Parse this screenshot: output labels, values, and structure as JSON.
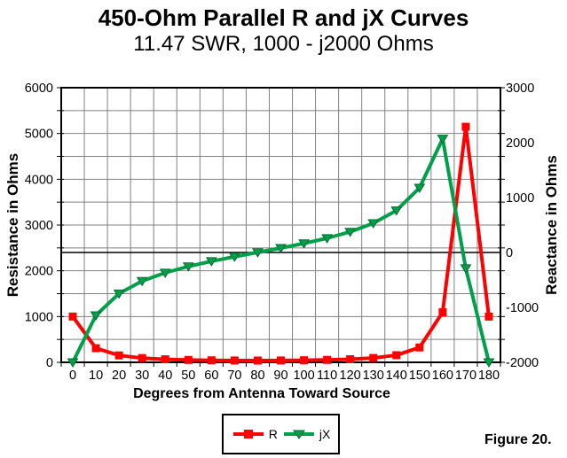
{
  "header": {
    "title": "450-Ohm Parallel R and jX Curves",
    "subtitle": "11.47 SWR, 1000 - j2000 Ohms"
  },
  "axes": {
    "left_title": "Resistance in Ohms",
    "right_title": "Reactance in Ohms",
    "x_title": "Degrees from Antenna Toward Source"
  },
  "legend": {
    "items": [
      {
        "label": "R",
        "color": "#ff0000",
        "marker": "square"
      },
      {
        "label": "jX",
        "color": "#00a04a",
        "marker": "triangle-down"
      }
    ]
  },
  "caption": "Figure 20.",
  "colors": {
    "r_series": "#ff0000",
    "jx_series": "#00a04a",
    "jx_marker_edge": "#006b31",
    "grid": "#808080",
    "axis": "#000000",
    "background": "#ffffff"
  },
  "chart_data": {
    "type": "line",
    "title": "450-Ohm Parallel R and jX Curves",
    "subtitle": "11.47 SWR, 1000 - j2000 Ohms",
    "xlabel": "Degrees from Antenna Toward Source",
    "x": [
      0,
      10,
      20,
      30,
      40,
      50,
      60,
      70,
      80,
      90,
      100,
      110,
      120,
      130,
      140,
      150,
      160,
      170,
      180
    ],
    "series": [
      {
        "name": "R",
        "axis": "left",
        "color": "#ff0000",
        "marker": "square",
        "values": [
          1000,
          309,
          151,
          93,
          66,
          52,
          44,
          40,
          39,
          41,
          45,
          53,
          67,
          95,
          156,
          325,
          1094,
          5147,
          1000
        ]
      },
      {
        "name": "jX",
        "axis": "right",
        "color": "#00a04a",
        "marker": "triangle-down",
        "values": [
          -2000,
          -1145,
          -748,
          -521,
          -369,
          -254,
          -160,
          -77,
          2,
          81,
          165,
          260,
          376,
          532,
          765,
          1177,
          2071,
          -289,
          -2000
        ]
      }
    ],
    "left_axis": {
      "title": "Resistance in Ohms",
      "min": 0,
      "max": 6000,
      "label_step": 1000,
      "grid_step": 500
    },
    "right_axis": {
      "title": "Reactance in Ohms",
      "min": -2000,
      "max": 3000,
      "label_step": 1000,
      "zero_line_at": 0
    },
    "grid": true,
    "legend_position": "bottom-center"
  }
}
